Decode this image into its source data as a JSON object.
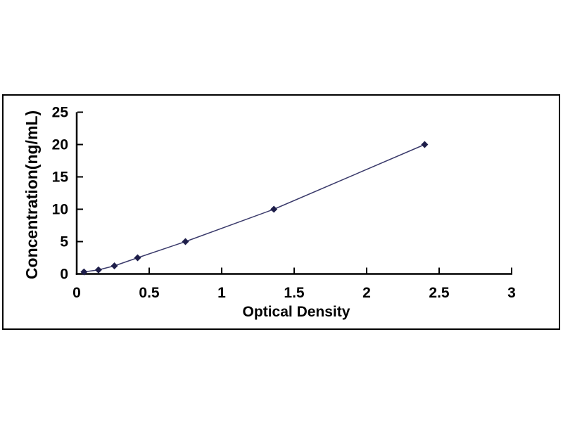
{
  "chart_data": {
    "type": "scatter",
    "title": "",
    "xlabel": "Optical Density",
    "ylabel": "Concentration(ng/mL)",
    "x": [
      0.05,
      0.15,
      0.26,
      0.42,
      0.75,
      1.36,
      2.4
    ],
    "y": [
      0.31,
      0.63,
      1.25,
      2.5,
      5,
      10,
      20
    ],
    "xlim": [
      0,
      3
    ],
    "ylim": [
      0,
      25
    ],
    "x_ticks": [
      0,
      0.5,
      1,
      1.5,
      2,
      2.5,
      3
    ],
    "x_tick_labels": [
      "0",
      "0.5",
      "1",
      "1.5",
      "2",
      "2.5",
      "3"
    ],
    "y_ticks": [
      0,
      5,
      10,
      15,
      20,
      25
    ],
    "y_tick_labels": [
      "0",
      "5",
      "10",
      "15",
      "20",
      "25"
    ],
    "grid": false,
    "legend": null,
    "marker": "diamond",
    "line_style": "solid",
    "colors": {
      "line": "#3A3A6B",
      "marker": "#1E1E4A",
      "axis": "#000000",
      "text": "#000000",
      "frame_border": "#000000",
      "background": "#FFFFFF"
    }
  }
}
